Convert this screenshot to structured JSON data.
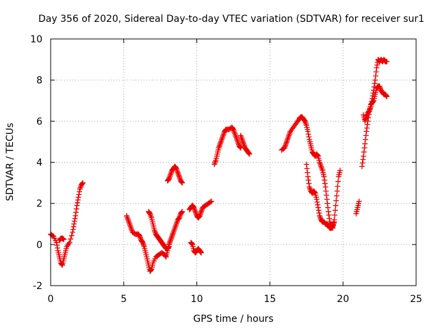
{
  "chart_data": {
    "type": "scatter",
    "title": "Day 356 of 2020, Sidereal Day-to-day VTEC variation (SDTVAR) for receiver sur1",
    "xlabel": "GPS time / hours",
    "ylabel": "SDTVAR / TECUs",
    "xlim": [
      0,
      25
    ],
    "ylim": [
      -2,
      10
    ],
    "xticks": [
      0,
      5,
      10,
      15,
      20,
      25
    ],
    "yticks": [
      -2,
      0,
      2,
      4,
      6,
      8,
      10
    ],
    "grid": true,
    "marker": "plus",
    "color": "#ee0000",
    "segments": [
      [
        [
          0.0,
          0.5
        ],
        [
          0.2,
          0.4
        ],
        [
          0.4,
          0.1
        ],
        [
          0.5,
          -0.3
        ],
        [
          0.6,
          -0.6
        ],
        [
          0.7,
          -0.9
        ],
        [
          0.8,
          -1.0
        ],
        [
          0.9,
          -0.7
        ],
        [
          1.0,
          -0.4
        ],
        [
          1.1,
          -0.1
        ],
        [
          1.3,
          0.1
        ],
        [
          1.5,
          0.6
        ],
        [
          1.6,
          1.0
        ],
        [
          1.7,
          1.4
        ],
        [
          1.8,
          1.9
        ],
        [
          1.9,
          2.3
        ],
        [
          2.0,
          2.7
        ],
        [
          2.1,
          2.9
        ],
        [
          2.2,
          3.0
        ]
      ],
      [
        [
          0.6,
          0.2
        ],
        [
          0.7,
          0.3
        ],
        [
          0.8,
          0.3
        ],
        [
          0.9,
          0.25
        ]
      ],
      [
        [
          5.2,
          1.4
        ],
        [
          5.3,
          1.2
        ],
        [
          5.4,
          1.0
        ],
        [
          5.5,
          0.8
        ],
        [
          5.6,
          0.6
        ],
        [
          5.8,
          0.5
        ],
        [
          6.0,
          0.5
        ],
        [
          6.1,
          0.4
        ],
        [
          6.2,
          0.2
        ],
        [
          6.3,
          0.1
        ],
        [
          6.4,
          -0.1
        ],
        [
          6.5,
          -0.4
        ],
        [
          6.6,
          -0.7
        ],
        [
          6.7,
          -1.0
        ],
        [
          6.8,
          -1.3
        ],
        [
          6.9,
          -1.2
        ],
        [
          7.0,
          -0.9
        ],
        [
          7.2,
          -0.6
        ],
        [
          7.4,
          -0.5
        ],
        [
          7.6,
          -0.4
        ],
        [
          7.8,
          -0.5
        ],
        [
          7.9,
          -0.6
        ],
        [
          8.0,
          -0.3
        ],
        [
          8.1,
          0.0
        ],
        [
          8.2,
          0.2
        ],
        [
          8.3,
          0.4
        ],
        [
          8.4,
          0.6
        ],
        [
          8.5,
          0.8
        ],
        [
          8.6,
          1.0
        ],
        [
          8.7,
          1.2
        ],
        [
          8.8,
          1.3
        ],
        [
          8.9,
          1.5
        ],
        [
          9.0,
          1.6
        ]
      ],
      [
        [
          6.7,
          1.6
        ],
        [
          6.8,
          1.5
        ],
        [
          6.9,
          1.3
        ],
        [
          7.0,
          1.0
        ],
        [
          7.1,
          0.7
        ],
        [
          7.2,
          0.5
        ],
        [
          7.3,
          0.4
        ],
        [
          7.4,
          0.3
        ],
        [
          7.5,
          0.2
        ],
        [
          7.6,
          0.1
        ],
        [
          7.7,
          0.0
        ],
        [
          7.8,
          -0.1
        ],
        [
          7.9,
          -0.2
        ],
        [
          8.0,
          -0.2
        ],
        [
          8.1,
          -0.1
        ]
      ],
      [
        [
          8.0,
          3.1
        ],
        [
          8.1,
          3.2
        ],
        [
          8.2,
          3.4
        ],
        [
          8.3,
          3.6
        ],
        [
          8.4,
          3.7
        ],
        [
          8.5,
          3.8
        ],
        [
          8.6,
          3.7
        ],
        [
          8.7,
          3.5
        ],
        [
          8.8,
          3.3
        ],
        [
          8.9,
          3.1
        ],
        [
          9.0,
          3.0
        ]
      ],
      [
        [
          9.6,
          0.1
        ],
        [
          9.7,
          0.0
        ],
        [
          9.8,
          -0.3
        ],
        [
          9.9,
          -0.4
        ],
        [
          10.0,
          -0.3
        ],
        [
          10.1,
          -0.2
        ],
        [
          10.2,
          -0.3
        ],
        [
          10.3,
          -0.4
        ]
      ],
      [
        [
          9.5,
          1.7
        ],
        [
          9.6,
          1.8
        ],
        [
          9.7,
          1.9
        ],
        [
          9.8,
          1.8
        ],
        [
          9.9,
          1.6
        ],
        [
          10.0,
          1.4
        ],
        [
          10.1,
          1.3
        ],
        [
          10.2,
          1.4
        ],
        [
          10.3,
          1.6
        ],
        [
          10.4,
          1.8
        ],
        [
          10.6,
          1.9
        ],
        [
          10.8,
          2.0
        ],
        [
          11.0,
          2.1
        ]
      ],
      [
        [
          11.2,
          3.9
        ],
        [
          11.3,
          4.1
        ],
        [
          11.4,
          4.4
        ],
        [
          11.5,
          4.7
        ],
        [
          11.6,
          4.9
        ],
        [
          11.7,
          5.1
        ],
        [
          11.8,
          5.3
        ],
        [
          11.9,
          5.5
        ],
        [
          12.0,
          5.6
        ],
        [
          12.2,
          5.6
        ],
        [
          12.4,
          5.7
        ],
        [
          12.5,
          5.6
        ],
        [
          12.6,
          5.4
        ],
        [
          12.7,
          5.2
        ],
        [
          12.8,
          5.0
        ],
        [
          12.9,
          4.8
        ],
        [
          13.0,
          4.7
        ]
      ],
      [
        [
          13.0,
          5.3
        ],
        [
          13.1,
          5.1
        ],
        [
          13.2,
          4.9
        ],
        [
          13.3,
          4.7
        ],
        [
          13.4,
          4.6
        ],
        [
          13.5,
          4.5
        ],
        [
          13.6,
          4.4
        ]
      ],
      [
        [
          15.8,
          4.6
        ],
        [
          16.0,
          4.7
        ],
        [
          16.1,
          4.9
        ],
        [
          16.2,
          5.1
        ],
        [
          16.3,
          5.3
        ],
        [
          16.4,
          5.5
        ],
        [
          16.6,
          5.7
        ],
        [
          16.8,
          5.9
        ],
        [
          17.0,
          6.1
        ],
        [
          17.1,
          6.2
        ],
        [
          17.2,
          6.2
        ],
        [
          17.3,
          6.1
        ],
        [
          17.4,
          6.0
        ],
        [
          17.5,
          5.8
        ],
        [
          17.6,
          5.5
        ],
        [
          17.7,
          5.1
        ],
        [
          17.8,
          4.8
        ],
        [
          17.9,
          4.5
        ],
        [
          18.0,
          4.4
        ],
        [
          18.1,
          4.3
        ],
        [
          18.2,
          4.4
        ],
        [
          18.3,
          4.3
        ],
        [
          18.4,
          4.0
        ],
        [
          18.5,
          3.8
        ],
        [
          18.6,
          3.6
        ],
        [
          18.7,
          3.3
        ],
        [
          18.8,
          2.8
        ],
        [
          18.9,
          2.2
        ],
        [
          19.0,
          1.6
        ],
        [
          19.1,
          1.1
        ],
        [
          19.2,
          0.9
        ],
        [
          19.3,
          0.8
        ],
        [
          19.4,
          1.2
        ],
        [
          19.5,
          1.9
        ],
        [
          19.6,
          2.6
        ],
        [
          19.7,
          3.3
        ],
        [
          19.8,
          3.6
        ]
      ],
      [
        [
          17.5,
          3.9
        ],
        [
          17.6,
          3.3
        ],
        [
          17.7,
          2.8
        ],
        [
          17.8,
          2.6
        ],
        [
          17.9,
          2.5
        ],
        [
          18.0,
          2.6
        ],
        [
          18.1,
          2.5
        ],
        [
          18.2,
          2.2
        ],
        [
          18.3,
          1.8
        ],
        [
          18.4,
          1.4
        ],
        [
          18.5,
          1.2
        ],
        [
          18.6,
          1.1
        ],
        [
          18.7,
          1.1
        ],
        [
          18.8,
          1.0
        ],
        [
          18.9,
          1.0
        ],
        [
          19.0,
          0.9
        ],
        [
          19.1,
          0.8
        ],
        [
          19.2,
          0.8
        ],
        [
          19.3,
          0.9
        ],
        [
          19.4,
          1.1
        ]
      ],
      [
        [
          20.9,
          1.5
        ],
        [
          21.0,
          1.8
        ],
        [
          21.1,
          2.1
        ]
      ],
      [
        [
          21.3,
          3.8
        ],
        [
          21.4,
          4.3
        ],
        [
          21.5,
          4.9
        ],
        [
          21.6,
          5.5
        ],
        [
          21.7,
          6.0
        ],
        [
          21.8,
          6.5
        ],
        [
          21.9,
          6.8
        ],
        [
          22.0,
          6.9
        ],
        [
          22.1,
          7.0
        ],
        [
          22.2,
          7.3
        ],
        [
          22.3,
          7.6
        ],
        [
          22.4,
          7.7
        ],
        [
          22.5,
          7.7
        ],
        [
          22.6,
          7.5
        ],
        [
          22.7,
          7.4
        ],
        [
          22.8,
          7.3
        ],
        [
          22.9,
          7.3
        ],
        [
          23.0,
          7.2
        ]
      ],
      [
        [
          21.4,
          6.3
        ],
        [
          21.5,
          6.0
        ],
        [
          21.6,
          6.2
        ],
        [
          21.7,
          6.4
        ],
        [
          21.8,
          6.5
        ],
        [
          21.9,
          6.7
        ],
        [
          22.0,
          7.1
        ],
        [
          22.1,
          7.5
        ],
        [
          22.2,
          8.0
        ],
        [
          22.3,
          8.6
        ],
        [
          22.4,
          9.0
        ],
        [
          22.5,
          8.9
        ],
        [
          22.6,
          9.0
        ],
        [
          22.7,
          8.9
        ],
        [
          22.8,
          9.0
        ],
        [
          22.9,
          8.9
        ],
        [
          23.0,
          8.9
        ]
      ]
    ]
  }
}
